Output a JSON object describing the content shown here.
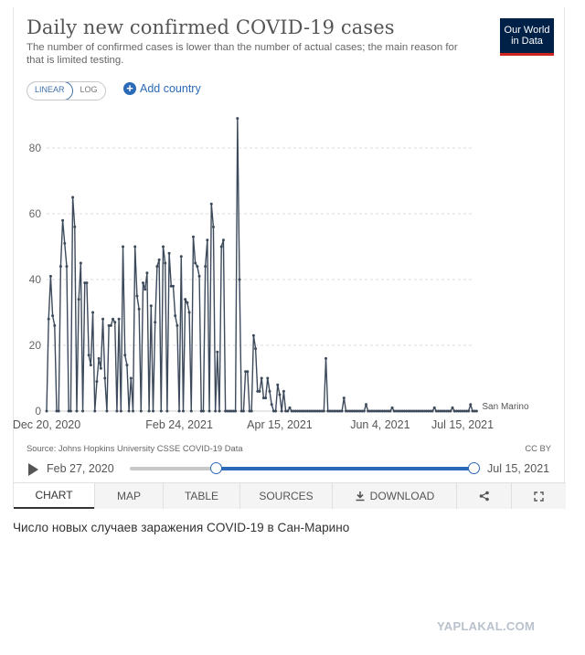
{
  "title": "Daily new confirmed COVID-19 cases",
  "subtitle": "The number of confirmed cases is lower than the number of actual cases; the main reason for that is limited testing.",
  "logo": {
    "line1": "Our World",
    "line2": "in Data"
  },
  "scale_toggle": {
    "linear": "LINEAR",
    "log": "LOG"
  },
  "add_country": {
    "icon": "plus-icon",
    "label": "Add country"
  },
  "source": "Source: Johns Hopkins University CSSE COVID-19 Data",
  "license": "CC BY",
  "timeline": {
    "start": "Feb 27, 2020",
    "end": "Jul 15, 2021",
    "range_start_fraction": 0.25,
    "range_end_fraction": 1.0
  },
  "tabs": {
    "chart": "CHART",
    "map": "MAP",
    "table": "TABLE",
    "sources": "SOURCES",
    "download": "DOWNLOAD",
    "download_icon": "download-icon",
    "share_icon": "share-icon",
    "fullscreen_icon": "fullscreen-icon"
  },
  "caption": "Число новых случаев заражения COVID-19 в Сан-Марино",
  "watermark": "YAPLAKAL.COM",
  "colors": {
    "line": "#3d4a5c",
    "accent": "#2a6ab8",
    "logo_bg": "#002147",
    "logo_stripe": "#ce261e"
  },
  "chart_data": {
    "type": "line",
    "title": "Daily new confirmed COVID-19 cases",
    "x_range": [
      "2020-12-20",
      "2021-07-20"
    ],
    "ylim": [
      0,
      90
    ],
    "y_ticks": [
      0,
      20,
      40,
      60,
      80
    ],
    "x_tick_labels": [
      "Dec 20, 2020",
      "Feb 24, 2021",
      "Apr 15, 2021",
      "Jun 4, 2021",
      "Jul 15, 2021"
    ],
    "x_tick_dates": [
      "2020-12-20",
      "2021-02-24",
      "2021-04-15",
      "2021-06-04",
      "2021-07-15"
    ],
    "grid": "horizontal dashed",
    "series": [
      {
        "name": "San Marino",
        "start_date": "2020-12-20",
        "values": [
          0,
          28,
          41,
          29,
          26,
          0,
          0,
          44,
          58,
          51,
          44,
          0,
          0,
          65,
          56,
          0,
          34,
          45,
          0,
          39,
          39,
          17,
          14,
          30,
          0,
          9,
          16,
          13,
          28,
          10,
          0,
          26,
          26,
          28,
          27,
          0,
          28,
          0,
          50,
          17,
          14,
          0,
          10,
          0,
          50,
          35,
          31,
          0,
          39,
          37,
          42,
          0,
          32,
          0,
          27,
          44,
          46,
          0,
          50,
          45,
          0,
          48,
          38,
          38,
          29,
          26,
          0,
          47,
          0,
          34,
          33,
          30,
          0,
          53,
          45,
          44,
          41,
          0,
          0,
          44,
          52,
          0,
          63,
          56,
          0,
          18,
          0,
          50,
          52,
          0,
          0,
          0,
          0,
          0,
          0,
          89,
          40,
          0,
          0,
          12,
          12,
          0,
          0,
          23,
          19,
          6,
          6,
          10,
          4,
          4,
          10,
          6,
          2,
          0,
          0,
          8,
          5,
          0,
          6,
          0,
          0,
          1,
          0,
          0,
          0,
          0,
          0,
          0,
          0,
          0,
          0,
          0,
          0,
          0,
          0,
          0,
          0,
          0,
          0,
          16,
          0,
          0,
          0,
          0,
          0,
          0,
          0,
          0,
          4,
          0,
          0,
          0,
          0,
          0,
          0,
          0,
          0,
          0,
          0,
          2,
          0,
          0,
          0,
          0,
          0,
          0,
          0,
          0,
          0,
          0,
          0,
          0,
          1,
          0,
          0,
          0,
          0,
          0,
          0,
          0,
          0,
          0,
          0,
          0,
          0,
          0,
          0,
          0,
          0,
          0,
          0,
          0,
          0,
          1,
          0,
          0,
          0,
          0,
          0,
          0,
          0,
          0,
          1,
          0,
          0,
          0,
          0,
          0,
          0,
          0,
          0,
          2,
          0,
          0,
          0
        ]
      }
    ]
  }
}
